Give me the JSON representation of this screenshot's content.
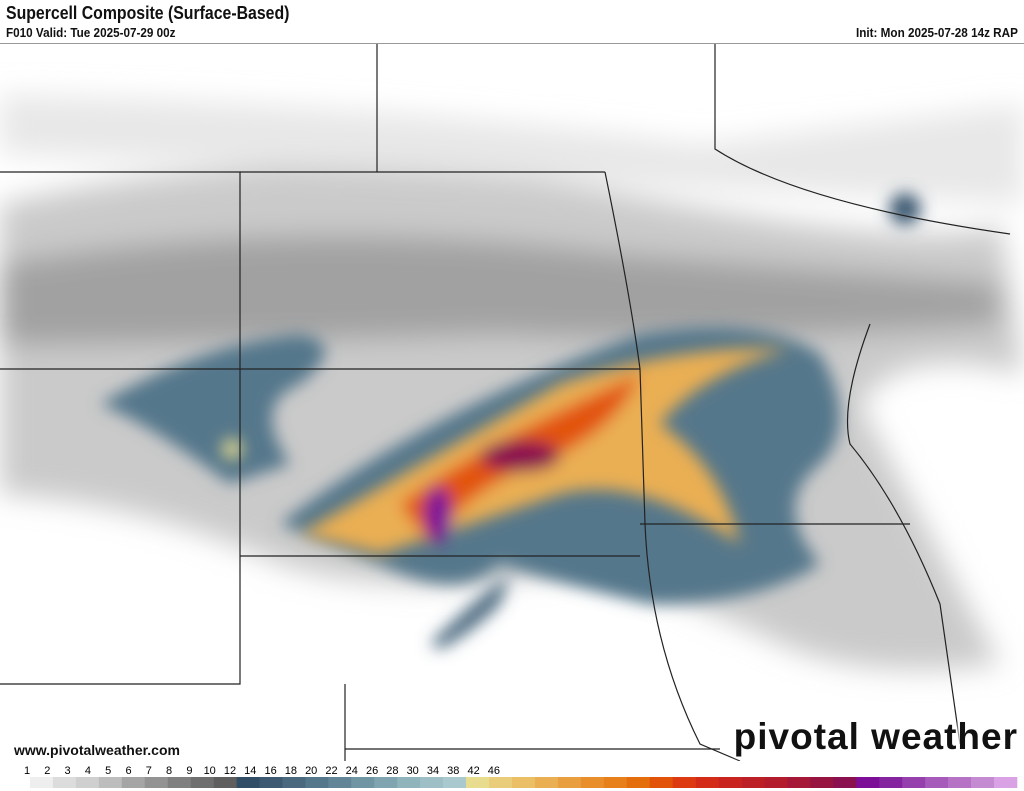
{
  "header": {
    "title": "Supercell Composite (Surface-Based)",
    "valid": "F010 Valid: Tue 2025-07-29 00z",
    "init": "Init: Mon 2025-07-28 14z RAP"
  },
  "footer": {
    "url": "www.pivotalweather.com",
    "logo": "pivotal weather"
  },
  "colorbar": {
    "ticks": [
      "1",
      "2",
      "3",
      "4",
      "5",
      "6",
      "7",
      "8",
      "9",
      "10",
      "12",
      "14",
      "16",
      "18",
      "20",
      "22",
      "24",
      "26",
      "28",
      "30",
      "34",
      "38",
      "42",
      "46"
    ],
    "colors": [
      "#ffffff",
      "#eeeeee",
      "#dcdcdc",
      "#cfcfcf",
      "#bdbdbd",
      "#a5a5a5",
      "#939393",
      "#808080",
      "#6f6f6f",
      "#5f5f5f",
      "#324d66",
      "#3d5a72",
      "#4a687e",
      "#55778b",
      "#628697",
      "#7096a4",
      "#80a5b1",
      "#90b4bc",
      "#9ebfc6",
      "#aac9cf",
      "#e8dc8e",
      "#eacd7a",
      "#ebbf66",
      "#eaaf52",
      "#e99f3f",
      "#e88f2c",
      "#e77f1a",
      "#e46d0c",
      "#e25208",
      "#dd3a12",
      "#d42a18",
      "#c8231f",
      "#bd1f27",
      "#b31c2d",
      "#a51838",
      "#971441",
      "#8b1050",
      "#7d0e98",
      "#85249f",
      "#9640ad",
      "#a65ab9",
      "#b673c6",
      "#c48ad2",
      "#d9a2e4"
    ]
  }
}
